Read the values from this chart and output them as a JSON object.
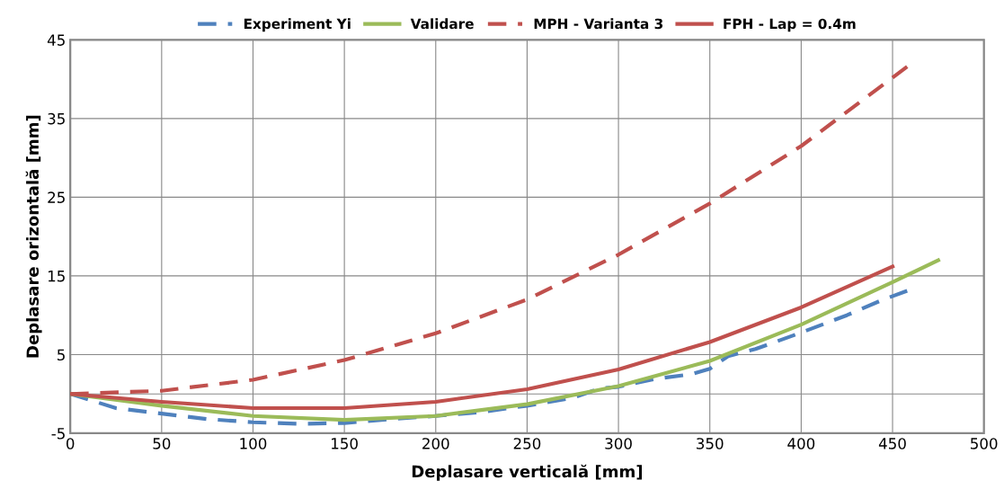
{
  "chart_data": {
    "type": "line",
    "xlabel": "Deplasare verticală [mm]",
    "ylabel": "Deplasare orizontală [mm]",
    "xlim": [
      0,
      500
    ],
    "xticks": [
      0,
      50,
      100,
      150,
      200,
      250,
      300,
      350,
      400,
      450,
      500
    ],
    "ylim": [
      -5,
      45
    ],
    "yticks": [
      -5,
      5,
      15,
      25,
      35,
      45
    ],
    "grid": true,
    "legend": "top",
    "marker": "none",
    "series": [
      {
        "name": "Experiment Yi",
        "color": "#4f81bd",
        "line_style": "dashed",
        "x": [
          0,
          25,
          50,
          75,
          100,
          125,
          150,
          175,
          200,
          225,
          250,
          275,
          290,
          300,
          320,
          340,
          350,
          360,
          375,
          400,
          425,
          445,
          458
        ],
        "values": [
          0,
          -1.8,
          -2.5,
          -3.2,
          -3.6,
          -3.8,
          -3.7,
          -3.2,
          -2.8,
          -2.3,
          -1.5,
          -0.5,
          0.7,
          0.9,
          1.9,
          2.5,
          3.2,
          4.8,
          5.7,
          7.8,
          10,
          12,
          13.1
        ]
      },
      {
        "name": "Validare",
        "color": "#9bbb59",
        "line_style": "solid",
        "x": [
          0,
          50,
          100,
          150,
          200,
          250,
          300,
          350,
          400,
          450,
          475
        ],
        "values": [
          0,
          -1.5,
          -2.8,
          -3.3,
          -2.8,
          -1.3,
          1.0,
          4.2,
          8.8,
          14.2,
          17.0
        ]
      },
      {
        "name": "MPH - Varianta 3",
        "color": "#c0504d",
        "line_style": "dashed",
        "x": [
          0,
          50,
          100,
          150,
          200,
          250,
          300,
          350,
          400,
          450,
          458
        ],
        "values": [
          0,
          0.4,
          1.8,
          4.3,
          7.7,
          12.0,
          17.7,
          24.2,
          31.5,
          40.2,
          41.6
        ]
      },
      {
        "name": "FPH - Lap = 0.4m",
        "color": "#c0504d",
        "line_style": "solid",
        "x": [
          0,
          50,
          100,
          150,
          200,
          250,
          300,
          350,
          400,
          450
        ],
        "values": [
          0,
          -1.0,
          -1.8,
          -1.8,
          -1.0,
          0.6,
          3.1,
          6.6,
          11.0,
          16.2
        ]
      }
    ]
  }
}
